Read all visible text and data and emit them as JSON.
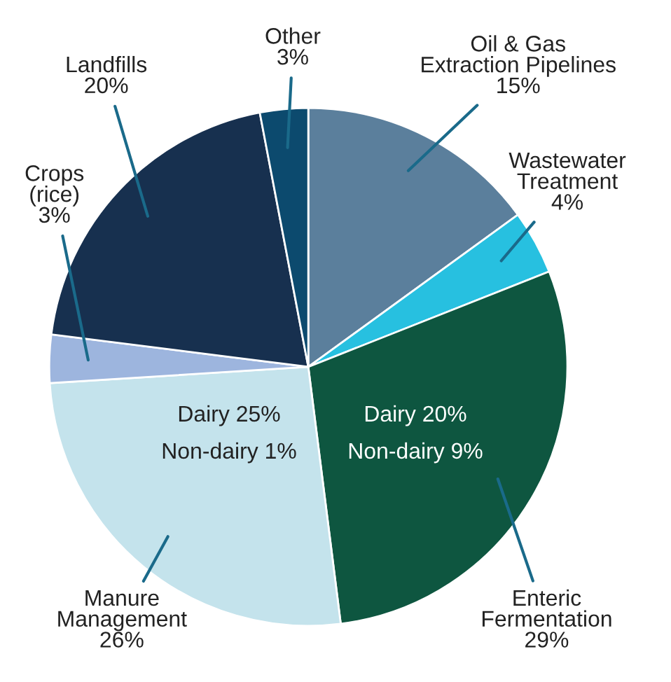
{
  "chart_data": {
    "type": "pie",
    "categories": [
      "Oil & Gas\nExtraction Pipelines",
      "Wastewater\nTreatment",
      "Enteric\nFermentation",
      "Manure\nManagement",
      "Crops\n(rice)",
      "Landfills",
      "Other"
    ],
    "values": [
      15,
      4,
      29,
      26,
      3,
      20,
      3
    ],
    "value_labels": [
      "15%",
      "4%",
      "29%",
      "26%",
      "3%",
      "20%",
      "3%"
    ],
    "colors": [
      "#5b7f9c",
      "#27c0e0",
      "#0e5640",
      "#c4e3ec",
      "#9db5de",
      "#17304f",
      "#0c4a6e"
    ],
    "annotations": [
      {
        "text": "Dairy 20%\nNon-dairy 9%",
        "x": "Enteric\nFermentation"
      },
      {
        "text": "Dairy 25%\nNon-dairy 1%",
        "x": "Manure\nManagement"
      }
    ]
  }
}
